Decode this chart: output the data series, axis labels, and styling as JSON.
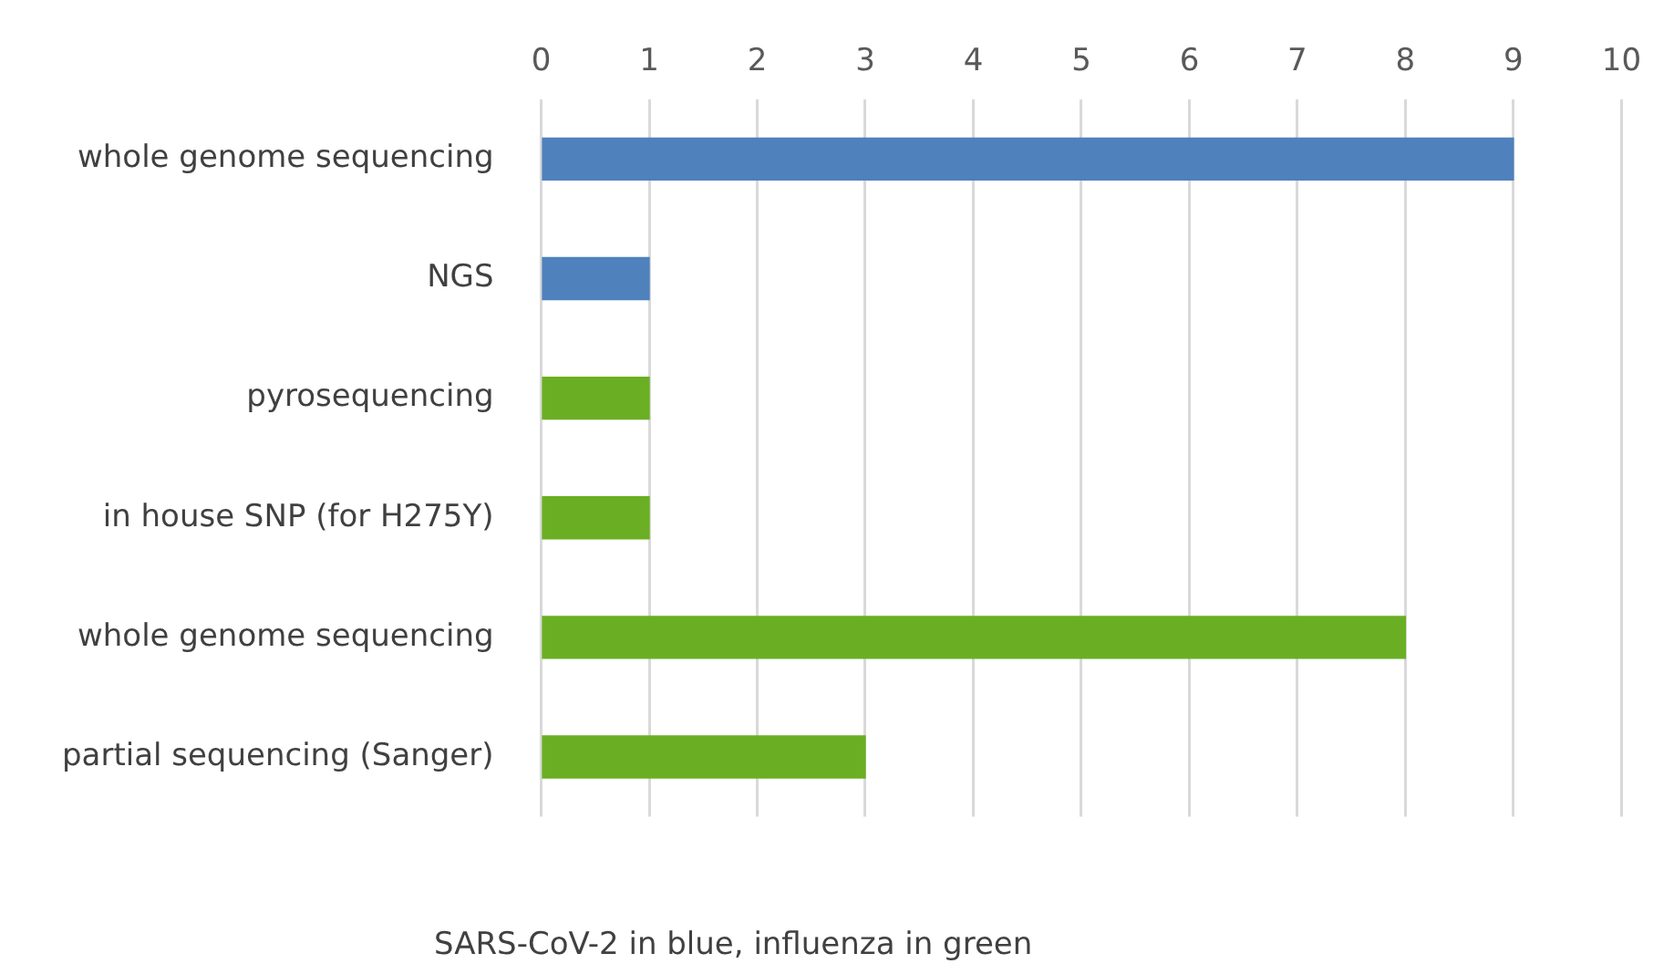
{
  "chart_data": {
    "type": "bar",
    "orientation": "horizontal",
    "categories": [
      "whole genome sequencing",
      "NGS",
      "pyrosequencing",
      "in house SNP (for H275Y)",
      "whole genome sequencing",
      "partial sequencing (Sanger)"
    ],
    "values": [
      9,
      1,
      1,
      1,
      8,
      3
    ],
    "colors": [
      "#4f81bd",
      "#4f81bd",
      "#6aaf23",
      "#6aaf23",
      "#6aaf23",
      "#6aaf23"
    ],
    "xlim": [
      0,
      10
    ],
    "xticks": [
      0,
      1,
      2,
      3,
      4,
      5,
      6,
      7,
      8,
      9,
      10
    ],
    "grid": "x",
    "annotations": [
      "SARS-CoV-2 in blue, influenza in green"
    ]
  }
}
